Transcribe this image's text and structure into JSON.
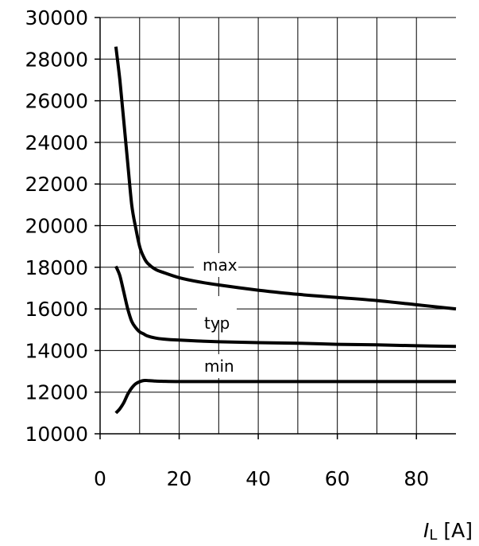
{
  "chart_data": {
    "type": "line",
    "xlabel": "I",
    "xlabel_sub": "L",
    "xlabel_unit": " [A]",
    "ylabel": "",
    "xlim": [
      0,
      90
    ],
    "ylim": [
      10000,
      30000
    ],
    "grid": true,
    "x_ticks": [
      0,
      20,
      40,
      60,
      80
    ],
    "y_ticks": [
      10000,
      12000,
      14000,
      16000,
      18000,
      20000,
      22000,
      24000,
      26000,
      28000,
      30000
    ],
    "x_tick_labels": [
      "0",
      "20",
      "40",
      "60",
      "80"
    ],
    "y_tick_labels": [
      "10000",
      "12000",
      "14000",
      "16000",
      "18000",
      "20000",
      "22000",
      "24000",
      "26000",
      "28000",
      "30000"
    ],
    "series": [
      {
        "name": "max",
        "x": [
          4,
          5,
          6,
          7,
          8,
          9,
          10,
          11,
          12,
          14,
          16,
          20,
          25,
          30,
          40,
          50,
          60,
          70,
          80,
          90
        ],
        "y": [
          28600,
          27000,
          25000,
          23000,
          21000,
          19900,
          19000,
          18500,
          18200,
          17900,
          17750,
          17500,
          17300,
          17150,
          16900,
          16700,
          16550,
          16400,
          16200,
          16000
        ]
      },
      {
        "name": "typ",
        "x": [
          4,
          5,
          6,
          7,
          8,
          9,
          10,
          11,
          12,
          14,
          16,
          20,
          30,
          40,
          50,
          60,
          70,
          80,
          90
        ],
        "y": [
          18050,
          17600,
          16800,
          16000,
          15400,
          15100,
          14900,
          14800,
          14700,
          14600,
          14550,
          14500,
          14420,
          14380,
          14350,
          14300,
          14270,
          14230,
          14200
        ]
      },
      {
        "name": "min",
        "x": [
          4,
          5,
          6,
          7,
          8,
          9,
          10,
          11,
          12,
          14,
          16,
          20,
          30,
          50,
          70,
          90
        ],
        "y": [
          11000,
          11200,
          11500,
          11900,
          12200,
          12400,
          12500,
          12560,
          12560,
          12530,
          12520,
          12510,
          12510,
          12510,
          12510,
          12510
        ]
      }
    ]
  },
  "labels": {
    "max": "max",
    "typ": "typ",
    "min": "min"
  }
}
